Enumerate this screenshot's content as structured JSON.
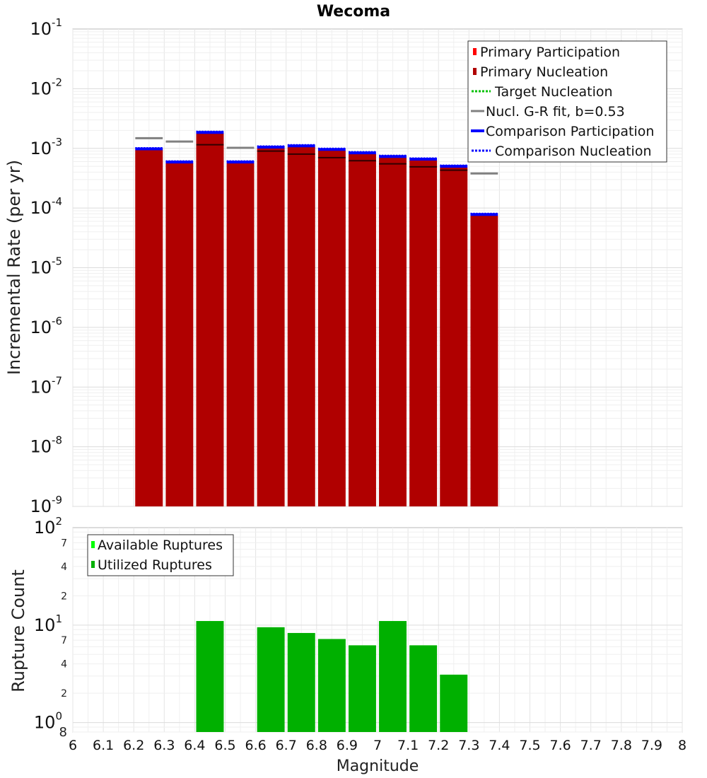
{
  "title": "Wecoma",
  "xlabel": "Magnitude",
  "colors": {
    "primary_participation": "#ff0000",
    "primary_nucleation": "#b00000",
    "target_nucleation": "#00c000",
    "gr_fit": "#808080",
    "comparison": "#0000ff",
    "available": "#00ff00",
    "utilized": "#00b000"
  },
  "x_ticks": [
    "6",
    "6.1",
    "6.2",
    "6.3",
    "6.4",
    "6.5",
    "6.6",
    "6.7",
    "6.8",
    "6.9",
    "7",
    "7.1",
    "7.2",
    "7.3",
    "7.4",
    "7.5",
    "7.6",
    "7.7",
    "7.8",
    "7.9",
    "8"
  ],
  "chart_data": [
    {
      "type": "bar",
      "ylabel": "Incremental Rate (per yr)",
      "yscale": "log",
      "xlim": [
        6,
        8
      ],
      "ylim": [
        1e-09,
        0.1
      ],
      "grid": true,
      "legend_position": "top-right",
      "y_ticks": [
        {
          "base": "10",
          "exp": "-1",
          "value": 0.1
        },
        {
          "base": "10",
          "exp": "-2",
          "value": 0.01
        },
        {
          "base": "10",
          "exp": "-3",
          "value": 0.001
        },
        {
          "base": "10",
          "exp": "-4",
          "value": 0.0001
        },
        {
          "base": "10",
          "exp": "-5",
          "value": 1e-05
        },
        {
          "base": "10",
          "exp": "-6",
          "value": 1e-06
        },
        {
          "base": "10",
          "exp": "-7",
          "value": 1e-07
        },
        {
          "base": "10",
          "exp": "-8",
          "value": 1e-08
        },
        {
          "base": "10",
          "exp": "-9",
          "value": 1e-09
        }
      ],
      "legend": [
        {
          "label": "Primary Participation",
          "style": "bar-light"
        },
        {
          "label": "Primary Nucleation",
          "style": "bar-dark"
        },
        {
          "label": "Target Nucleation",
          "style": "green-dotted"
        },
        {
          "label": "Nucl. G-R fit, b=0.53",
          "style": "gray-line"
        },
        {
          "label": "Comparison Participation",
          "style": "blue-solid"
        },
        {
          "label": "Comparison Nucleation",
          "style": "blue-dotted"
        }
      ],
      "x": [
        6.25,
        6.35,
        6.45,
        6.55,
        6.65,
        6.75,
        6.85,
        6.95,
        7.05,
        7.15,
        7.25,
        7.35
      ],
      "series": [
        {
          "name": "Primary Participation",
          "values": [
            0.00095,
            0.00057,
            0.0018,
            0.00057,
            0.001,
            0.00105,
            0.00092,
            0.0008,
            0.0007,
            0.00063,
            0.00048,
            7.5e-05
          ]
        },
        {
          "name": "Primary Nucleation",
          "values": [
            0.00095,
            0.00057,
            0.0018,
            0.00057,
            0.001,
            0.00105,
            0.00092,
            0.0008,
            0.0007,
            0.00063,
            0.00048,
            7.5e-05
          ]
        },
        {
          "name": "Target Nucleation",
          "values": [
            0.00095,
            0.00057,
            0.0018,
            0.00057,
            0.001,
            0.00105,
            0.00092,
            0.0008,
            0.0007,
            0.00063,
            0.00048,
            7.5e-05
          ]
        },
        {
          "name": "Nucl. G-R fit, b=0.53",
          "values": [
            0.00148,
            0.0013,
            0.00115,
            0.00102,
            0.0009,
            0.0008,
            0.0007,
            0.00062,
            0.00055,
            0.00049,
            0.00043,
            0.00038
          ]
        },
        {
          "name": "Comparison Participation",
          "values": [
            0.00098,
            0.00059,
            0.00185,
            0.00059,
            0.00105,
            0.0011,
            0.00096,
            0.00084,
            0.00073,
            0.00066,
            0.0005,
            7.8e-05
          ]
        },
        {
          "name": "Comparison Nucleation",
          "values": [
            0.00098,
            0.00059,
            0.00185,
            0.00059,
            0.00105,
            0.0011,
            0.00096,
            0.00084,
            0.00073,
            0.00066,
            0.0005,
            7.8e-05
          ]
        }
      ]
    },
    {
      "type": "bar",
      "ylabel": "Rupture Count",
      "yscale": "log",
      "xlim": [
        6,
        8
      ],
      "ylim": [
        0.8,
        100
      ],
      "grid": true,
      "legend_position": "top-left",
      "y_ticks": [
        {
          "base": "10",
          "exp": "2",
          "value": 100
        },
        {
          "base": "10",
          "exp": "1",
          "value": 10
        },
        {
          "base": "10",
          "exp": "0",
          "value": 1
        }
      ],
      "y_minor_labels": [
        {
          "label": "7",
          "value": 70
        },
        {
          "label": "4",
          "value": 40
        },
        {
          "label": "2",
          "value": 20
        },
        {
          "label": "7",
          "value": 7
        },
        {
          "label": "4",
          "value": 4
        },
        {
          "label": "2",
          "value": 2
        },
        {
          "label": "8",
          "value": 0.8
        }
      ],
      "legend": [
        {
          "label": "Available Ruptures",
          "style": "bar-light"
        },
        {
          "label": "Utilized Ruptures",
          "style": "bar-dark"
        }
      ],
      "x": [
        6.45,
        6.65,
        6.75,
        6.85,
        6.95,
        7.05,
        7.15,
        7.25
      ],
      "series": [
        {
          "name": "Available Ruptures",
          "values": [
            11,
            9.5,
            8.3,
            7.2,
            6.2,
            11,
            6.2,
            3.1
          ]
        },
        {
          "name": "Utilized Ruptures",
          "values": [
            11,
            9.5,
            8.3,
            7.2,
            6.2,
            11,
            6.2,
            3.1
          ]
        }
      ]
    }
  ]
}
